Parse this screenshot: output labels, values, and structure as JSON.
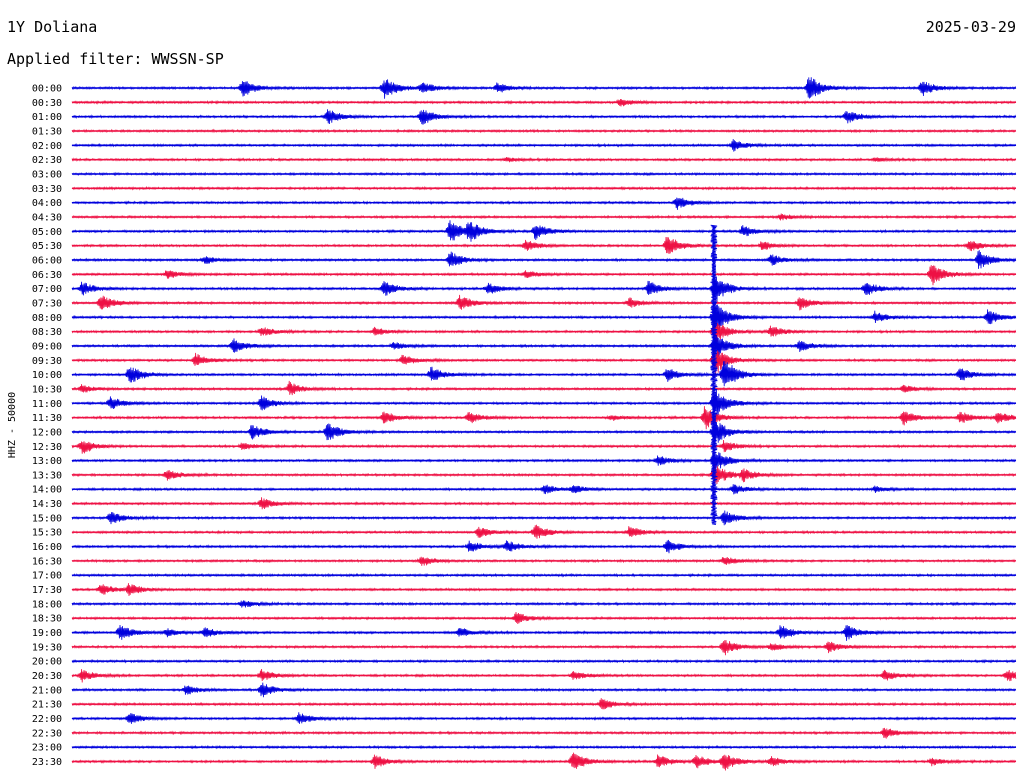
{
  "header": {
    "station": "1Y Doliana",
    "date": "2025-03-29",
    "filter": "Applied filter: WWSSN-SP"
  },
  "chart_data": {
    "type": "line",
    "ylabel": "HHZ - 50000",
    "colors": {
      "even": "#0000dd",
      "odd": "#ee1144"
    },
    "time_range_minutes": [
      0,
      30
    ],
    "rows": [
      {
        "label": "00:00",
        "events": [
          [
            0.18,
            9
          ],
          [
            0.33,
            12
          ],
          [
            0.37,
            6
          ],
          [
            0.45,
            5
          ],
          [
            0.78,
            14
          ],
          [
            0.9,
            8
          ]
        ]
      },
      {
        "label": "00:30",
        "events": [
          [
            0.58,
            4
          ]
        ]
      },
      {
        "label": "01:00",
        "events": [
          [
            0.27,
            8
          ],
          [
            0.37,
            9
          ],
          [
            0.82,
            7
          ]
        ]
      },
      {
        "label": "01:30",
        "events": []
      },
      {
        "label": "02:00",
        "events": [
          [
            0.7,
            6
          ]
        ]
      },
      {
        "label": "02:30",
        "events": [
          [
            0.46,
            2
          ],
          [
            0.85,
            2
          ]
        ]
      },
      {
        "label": "03:00",
        "events": []
      },
      {
        "label": "03:30",
        "events": []
      },
      {
        "label": "04:00",
        "events": [
          [
            0.64,
            7
          ]
        ]
      },
      {
        "label": "04:30",
        "events": [
          [
            0.75,
            3
          ]
        ]
      },
      {
        "label": "05:00",
        "events": [
          [
            0.4,
            13
          ],
          [
            0.42,
            10
          ],
          [
            0.49,
            9
          ],
          [
            0.71,
            6
          ]
        ]
      },
      {
        "label": "05:30",
        "events": [
          [
            0.48,
            6
          ],
          [
            0.63,
            12
          ],
          [
            0.73,
            5
          ],
          [
            0.95,
            6
          ]
        ]
      },
      {
        "label": "06:00",
        "events": [
          [
            0.14,
            4
          ],
          [
            0.4,
            9
          ],
          [
            0.74,
            6
          ],
          [
            0.96,
            10
          ]
        ]
      },
      {
        "label": "06:30",
        "events": [
          [
            0.1,
            5
          ],
          [
            0.48,
            4
          ],
          [
            0.91,
            12
          ]
        ]
      },
      {
        "label": "07:00",
        "events": [
          [
            0.01,
            7
          ],
          [
            0.33,
            8
          ],
          [
            0.44,
            6
          ],
          [
            0.61,
            8
          ],
          [
            0.68,
            16
          ],
          [
            0.84,
            8
          ]
        ]
      },
      {
        "label": "07:30",
        "events": [
          [
            0.03,
            9
          ],
          [
            0.41,
            8
          ],
          [
            0.59,
            5
          ],
          [
            0.77,
            7
          ]
        ]
      },
      {
        "label": "08:00",
        "events": [
          [
            0.68,
            18
          ],
          [
            0.85,
            6
          ],
          [
            0.97,
            8
          ]
        ]
      },
      {
        "label": "08:30",
        "events": [
          [
            0.2,
            5
          ],
          [
            0.32,
            4
          ],
          [
            0.68,
            12
          ],
          [
            0.74,
            6
          ]
        ]
      },
      {
        "label": "09:00",
        "events": [
          [
            0.17,
            8
          ],
          [
            0.34,
            4
          ],
          [
            0.68,
            14
          ],
          [
            0.77,
            6
          ]
        ]
      },
      {
        "label": "09:30",
        "events": [
          [
            0.13,
            7
          ],
          [
            0.35,
            6
          ],
          [
            0.68,
            16
          ]
        ]
      },
      {
        "label": "10:00",
        "events": [
          [
            0.06,
            10
          ],
          [
            0.38,
            8
          ],
          [
            0.63,
            7
          ],
          [
            0.69,
            18
          ],
          [
            0.94,
            7
          ]
        ]
      },
      {
        "label": "10:30",
        "events": [
          [
            0.01,
            4
          ],
          [
            0.23,
            7
          ],
          [
            0.88,
            4
          ]
        ]
      },
      {
        "label": "11:00",
        "events": [
          [
            0.04,
            7
          ],
          [
            0.2,
            8
          ],
          [
            0.68,
            16
          ]
        ]
      },
      {
        "label": "11:30",
        "events": [
          [
            0.33,
            7
          ],
          [
            0.42,
            6
          ],
          [
            0.57,
            3
          ],
          [
            0.67,
            12
          ],
          [
            0.88,
            8
          ],
          [
            0.94,
            7
          ],
          [
            0.98,
            6
          ]
        ]
      },
      {
        "label": "12:00",
        "events": [
          [
            0.19,
            8
          ],
          [
            0.27,
            10
          ],
          [
            0.68,
            14
          ]
        ]
      },
      {
        "label": "12:30",
        "events": [
          [
            0.01,
            8
          ],
          [
            0.18,
            4
          ],
          [
            0.69,
            6
          ]
        ]
      },
      {
        "label": "13:00",
        "events": [
          [
            0.62,
            5
          ],
          [
            0.68,
            12
          ]
        ]
      },
      {
        "label": "13:30",
        "events": [
          [
            0.1,
            6
          ],
          [
            0.68,
            12
          ],
          [
            0.71,
            6
          ]
        ]
      },
      {
        "label": "14:00",
        "events": [
          [
            0.5,
            5
          ],
          [
            0.53,
            4
          ],
          [
            0.7,
            5
          ],
          [
            0.85,
            3
          ]
        ]
      },
      {
        "label": "14:30",
        "events": [
          [
            0.2,
            6
          ]
        ]
      },
      {
        "label": "15:00",
        "events": [
          [
            0.04,
            7
          ],
          [
            0.69,
            8
          ]
        ]
      },
      {
        "label": "15:30",
        "events": [
          [
            0.43,
            6
          ],
          [
            0.49,
            8
          ],
          [
            0.59,
            6
          ]
        ]
      },
      {
        "label": "16:00",
        "events": [
          [
            0.42,
            6
          ],
          [
            0.46,
            6
          ],
          [
            0.63,
            7
          ]
        ]
      },
      {
        "label": "16:30",
        "events": [
          [
            0.37,
            5
          ],
          [
            0.69,
            5
          ]
        ]
      },
      {
        "label": "17:00",
        "events": []
      },
      {
        "label": "17:30",
        "events": [
          [
            0.03,
            6
          ],
          [
            0.06,
            6
          ]
        ]
      },
      {
        "label": "18:00",
        "events": [
          [
            0.18,
            4
          ]
        ]
      },
      {
        "label": "18:30",
        "events": [
          [
            0.47,
            6
          ]
        ]
      },
      {
        "label": "19:00",
        "events": [
          [
            0.05,
            8
          ],
          [
            0.1,
            4
          ],
          [
            0.14,
            5
          ],
          [
            0.41,
            5
          ],
          [
            0.75,
            8
          ],
          [
            0.82,
            8
          ]
        ]
      },
      {
        "label": "19:30",
        "events": [
          [
            0.69,
            9
          ],
          [
            0.74,
            4
          ],
          [
            0.8,
            6
          ]
        ]
      },
      {
        "label": "20:00",
        "events": []
      },
      {
        "label": "20:30",
        "events": [
          [
            0.01,
            6
          ],
          [
            0.2,
            6
          ],
          [
            0.53,
            5
          ],
          [
            0.86,
            6
          ],
          [
            0.99,
            6
          ]
        ]
      },
      {
        "label": "21:00",
        "events": [
          [
            0.12,
            5
          ],
          [
            0.2,
            8
          ]
        ]
      },
      {
        "label": "21:30",
        "events": [
          [
            0.56,
            6
          ]
        ]
      },
      {
        "label": "22:00",
        "events": [
          [
            0.06,
            6
          ],
          [
            0.24,
            6
          ]
        ]
      },
      {
        "label": "22:30",
        "events": [
          [
            0.86,
            6
          ]
        ]
      },
      {
        "label": "23:00",
        "events": []
      },
      {
        "label": "23:30",
        "events": [
          [
            0.32,
            7
          ],
          [
            0.53,
            10
          ],
          [
            0.62,
            7
          ],
          [
            0.66,
            7
          ],
          [
            0.69,
            9
          ],
          [
            0.74,
            5
          ],
          [
            0.91,
            4
          ]
        ]
      }
    ],
    "large_event": {
      "start_row_label": "05:00",
      "end_row_label": "15:00",
      "x_fraction": 0.68
    }
  }
}
